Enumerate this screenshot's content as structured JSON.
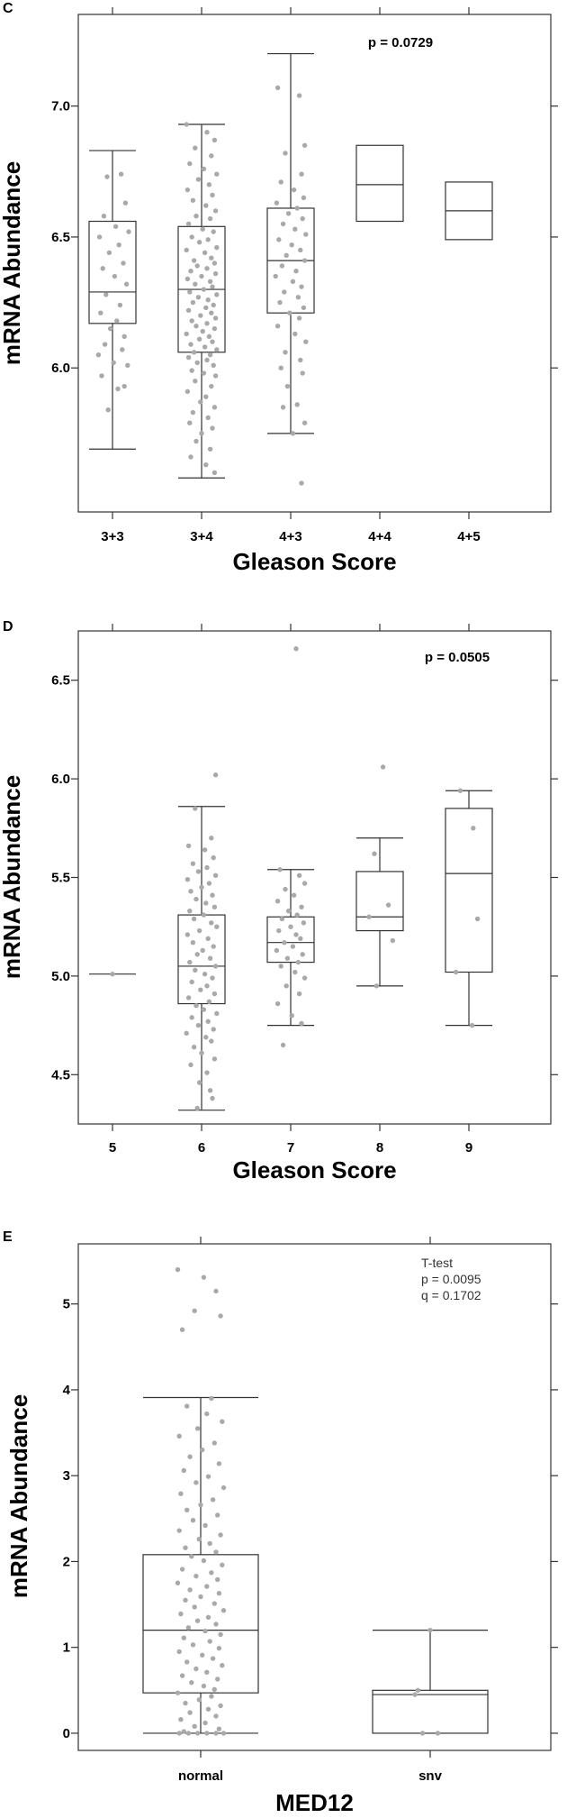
{
  "chart_data": [
    {
      "panel": "C",
      "type": "box",
      "xlabel": "Gleason Score",
      "ylabel": "mRNA Abundance",
      "categories": [
        "3+3",
        "3+4",
        "4+3",
        "4+4",
        "4+5"
      ],
      "ylim": [
        5.45,
        7.35
      ],
      "yticks": [
        6.0,
        6.5,
        7.0
      ],
      "ytick_labels": [
        "6.0",
        "6.5",
        "7.0"
      ],
      "annotation": [
        "p = 0.0729"
      ],
      "annotation_style": "bold",
      "boxes": [
        {
          "whislo": 5.69,
          "q1": 6.17,
          "med": 6.29,
          "q3": 6.56,
          "whishi": 6.83
        },
        {
          "whislo": 5.58,
          "q1": 6.06,
          "med": 6.3,
          "q3": 6.54,
          "whishi": 6.93
        },
        {
          "whislo": 5.75,
          "q1": 6.21,
          "med": 6.41,
          "q3": 6.61,
          "whishi": 7.2
        },
        {
          "whislo": 6.56,
          "q1": 6.56,
          "med": 6.7,
          "q3": 6.85,
          "whishi": 6.85
        },
        {
          "whislo": 6.49,
          "q1": 6.49,
          "med": 6.6,
          "q3": 6.71,
          "whishi": 6.71
        }
      ],
      "points": [
        [
          0.08,
          6.74,
          -0.05,
          6.73,
          0.12,
          6.63,
          -0.08,
          6.58,
          0.03,
          6.54,
          0.15,
          6.52,
          -0.12,
          6.5,
          0.06,
          6.47,
          -0.03,
          6.44,
          0.1,
          6.4,
          -0.09,
          6.38,
          0.02,
          6.35,
          0.13,
          6.32,
          -0.06,
          6.28,
          0.07,
          6.24,
          -0.11,
          6.21,
          0.04,
          6.18,
          -0.02,
          6.15,
          0.11,
          6.12,
          -0.07,
          6.09,
          0.09,
          6.07,
          -0.13,
          6.05,
          0.01,
          6.02,
          0.14,
          6.01,
          -0.1,
          5.97,
          0.05,
          5.92,
          -0.04,
          5.84,
          0.11,
          5.93
        ],
        [
          -0.14,
          6.93,
          0.05,
          6.9,
          0.12,
          6.87,
          -0.06,
          6.84,
          0.09,
          6.81,
          -0.11,
          6.78,
          0.02,
          6.76,
          0.14,
          6.74,
          -0.03,
          6.72,
          0.07,
          6.7,
          -0.13,
          6.68,
          0.1,
          6.66,
          -0.08,
          6.64,
          0.04,
          6.62,
          0.13,
          6.6,
          -0.05,
          6.58,
          0.08,
          6.57,
          -0.12,
          6.55,
          0.01,
          6.53,
          0.11,
          6.52,
          -0.09,
          6.5,
          0.06,
          6.49,
          -0.02,
          6.48,
          0.14,
          6.46,
          -0.14,
          6.45,
          0.03,
          6.44,
          0.09,
          6.42,
          -0.07,
          6.41,
          0.12,
          6.4,
          -0.04,
          6.39,
          0.05,
          6.38,
          -0.1,
          6.37,
          0.13,
          6.36,
          0.0,
          6.35,
          -0.13,
          6.34,
          0.08,
          6.33,
          -0.06,
          6.32,
          0.1,
          6.31,
          0.02,
          6.3,
          -0.11,
          6.29,
          0.14,
          6.28,
          -0.03,
          6.27,
          0.06,
          6.26,
          -0.08,
          6.25,
          0.11,
          6.24,
          0.04,
          6.23,
          -0.12,
          6.22,
          0.09,
          6.21,
          -0.01,
          6.2,
          0.13,
          6.19,
          -0.09,
          6.18,
          0.05,
          6.17,
          -0.05,
          6.16,
          0.12,
          6.15,
          0.01,
          6.14,
          -0.14,
          6.13,
          0.07,
          6.12,
          -0.02,
          6.11,
          0.1,
          6.1,
          -0.1,
          6.09,
          0.03,
          6.08,
          0.14,
          6.07,
          -0.07,
          6.06,
          0.08,
          6.05,
          -0.12,
          6.04,
          0.05,
          6.03,
          -0.04,
          6.02,
          0.11,
          6.01,
          -0.09,
          5.99,
          0.02,
          5.98,
          0.13,
          5.97,
          -0.06,
          5.95,
          0.09,
          5.93,
          -0.13,
          5.91,
          0.04,
          5.89,
          -0.01,
          5.87,
          0.12,
          5.85,
          -0.08,
          5.83,
          0.06,
          5.81,
          -0.11,
          5.79,
          0.1,
          5.77,
          0.0,
          5.75,
          -0.05,
          5.72,
          0.08,
          5.69,
          -0.1,
          5.66,
          0.04,
          5.63,
          0.12,
          5.6
        ],
        [
          -0.12,
          7.07,
          0.08,
          7.04,
          0.13,
          6.85,
          -0.05,
          6.82,
          0.1,
          6.74,
          -0.09,
          6.71,
          0.03,
          6.68,
          0.12,
          6.65,
          -0.13,
          6.63,
          0.06,
          6.61,
          -0.02,
          6.59,
          0.11,
          6.57,
          -0.07,
          6.55,
          0.04,
          6.53,
          0.14,
          6.51,
          -0.11,
          6.49,
          0.01,
          6.47,
          0.09,
          6.45,
          -0.04,
          6.43,
          0.13,
          6.41,
          -0.08,
          6.39,
          0.05,
          6.37,
          -0.14,
          6.35,
          0.02,
          6.33,
          0.1,
          6.31,
          -0.06,
          6.29,
          0.07,
          6.27,
          -0.1,
          6.25,
          0.12,
          6.23,
          -0.01,
          6.21,
          0.08,
          6.19,
          -0.12,
          6.16,
          0.04,
          6.13,
          0.14,
          6.1,
          -0.05,
          6.06,
          0.09,
          6.03,
          -0.09,
          6.0,
          0.11,
          5.98,
          -0.03,
          5.93,
          0.06,
          5.86,
          -0.07,
          5.85,
          0.13,
          5.79,
          0.02,
          5.75,
          0.1,
          5.56
        ]
      ]
    },
    {
      "panel": "D",
      "type": "box",
      "xlabel": "Gleason Score",
      "ylabel": "mRNA Abundance",
      "categories": [
        "5",
        "6",
        "7",
        "8",
        "9"
      ],
      "ylim": [
        4.25,
        6.75
      ],
      "yticks": [
        4.5,
        5.0,
        5.5,
        6.0,
        6.5
      ],
      "ytick_labels": [
        "4.5",
        "5.0",
        "5.5",
        "6.0",
        "6.5"
      ],
      "annotation": [
        "p = 0.0505"
      ],
      "annotation_style": "bold",
      "boxes": [
        {
          "whislo": 5.01,
          "q1": 5.01,
          "med": 5.01,
          "q3": 5.01,
          "whishi": 5.01
        },
        {
          "whislo": 4.32,
          "q1": 4.86,
          "med": 5.05,
          "q3": 5.31,
          "whishi": 5.86
        },
        {
          "whislo": 4.75,
          "q1": 5.07,
          "med": 5.17,
          "q3": 5.3,
          "whishi": 5.54
        },
        {
          "whislo": 4.95,
          "q1": 5.23,
          "med": 5.3,
          "q3": 5.53,
          "whishi": 5.7
        },
        {
          "whislo": 4.75,
          "q1": 5.02,
          "med": 5.52,
          "q3": 5.85,
          "whishi": 5.94
        }
      ],
      "points": [
        [
          0.0,
          5.01
        ],
        [
          0.13,
          6.02,
          -0.06,
          5.85,
          0.09,
          5.7,
          -0.12,
          5.66,
          0.03,
          5.64,
          0.11,
          5.6,
          -0.08,
          5.57,
          0.05,
          5.55,
          -0.03,
          5.53,
          0.13,
          5.51,
          -0.13,
          5.49,
          0.07,
          5.47,
          0.0,
          5.45,
          -0.1,
          5.43,
          0.1,
          5.41,
          -0.05,
          5.39,
          0.04,
          5.37,
          0.12,
          5.35,
          -0.11,
          5.33,
          0.02,
          5.31,
          -0.07,
          5.29,
          0.09,
          5.27,
          0.14,
          5.25,
          -0.02,
          5.23,
          -0.13,
          5.21,
          0.06,
          5.19,
          -0.08,
          5.17,
          0.11,
          5.15,
          0.01,
          5.13,
          -0.04,
          5.11,
          0.08,
          5.09,
          -0.11,
          5.07,
          0.13,
          5.05,
          -0.06,
          5.03,
          0.03,
          5.01,
          0.1,
          4.99,
          -0.09,
          4.97,
          0.05,
          4.95,
          -0.01,
          4.93,
          0.12,
          4.91,
          -0.12,
          4.89,
          0.07,
          4.87,
          -0.05,
          4.85,
          0.02,
          4.83,
          0.14,
          4.81,
          -0.09,
          4.79,
          0.06,
          4.77,
          -0.03,
          4.75,
          0.11,
          4.73,
          -0.14,
          4.71,
          0.04,
          4.69,
          0.09,
          4.67,
          -0.07,
          4.64,
          0.0,
          4.61,
          0.12,
          4.58,
          -0.1,
          4.55,
          0.05,
          4.51,
          -0.02,
          4.46,
          0.08,
          4.42,
          0.1,
          4.38,
          -0.04,
          4.33
        ],
        [
          -0.1,
          5.54,
          0.08,
          5.51,
          0.13,
          5.47,
          -0.05,
          5.44,
          0.03,
          5.41,
          -0.12,
          5.38,
          0.1,
          5.35,
          -0.02,
          5.33,
          0.06,
          5.31,
          -0.08,
          5.29,
          0.12,
          5.27,
          0.0,
          5.25,
          -0.11,
          5.23,
          0.05,
          5.21,
          0.09,
          5.19,
          -0.06,
          5.17,
          0.02,
          5.15,
          -0.13,
          5.13,
          0.11,
          5.11,
          -0.03,
          5.09,
          0.07,
          5.07,
          -0.09,
          5.05,
          0.04,
          5.02,
          0.13,
          4.99,
          -0.04,
          4.95,
          0.08,
          4.91,
          -0.12,
          4.86,
          0.01,
          4.8,
          0.1,
          4.76,
          -0.07,
          4.65,
          0.05,
          6.66
        ],
        [
          -0.05,
          5.62,
          0.08,
          5.36,
          -0.1,
          5.3,
          0.12,
          5.18,
          0.03,
          6.06,
          -0.03,
          4.95
        ],
        [
          0.04,
          5.75,
          -0.08,
          5.94,
          0.08,
          5.29,
          0.03,
          4.75,
          -0.12,
          5.02
        ]
      ]
    },
    {
      "panel": "E",
      "type": "box",
      "xlabel": "MED12",
      "ylabel": "mRNA Abundance",
      "categories": [
        "normal",
        "snv"
      ],
      "ylim": [
        -0.2,
        5.7
      ],
      "yticks": [
        0,
        1,
        2,
        3,
        4,
        5
      ],
      "ytick_labels": [
        "0",
        "1",
        "2",
        "3",
        "4",
        "5"
      ],
      "annotation": [
        "T-test",
        "p = 0.0095",
        "q = 0.1702"
      ],
      "annotation_style": "plain",
      "boxes": [
        {
          "whislo": 0.0,
          "q1": 0.47,
          "med": 1.2,
          "q3": 2.08,
          "whishi": 3.91
        },
        {
          "whislo": 0.0,
          "q1": 0.0,
          "med": 0.45,
          "q3": 0.5,
          "whishi": 1.2
        }
      ],
      "points": [
        [
          -0.15,
          5.4,
          0.02,
          5.31,
          0.1,
          5.15,
          -0.04,
          4.92,
          0.13,
          4.86,
          -0.12,
          4.7,
          0.07,
          3.9,
          -0.09,
          3.81,
          0.04,
          3.72,
          0.14,
          3.63,
          -0.02,
          3.55,
          -0.14,
          3.46,
          0.09,
          3.38,
          0.01,
          3.3,
          -0.07,
          3.22,
          0.12,
          3.14,
          -0.11,
          3.06,
          0.05,
          2.99,
          -0.03,
          2.92,
          0.15,
          2.86,
          -0.13,
          2.79,
          0.08,
          2.72,
          0.0,
          2.66,
          -0.09,
          2.6,
          0.11,
          2.54,
          -0.05,
          2.48,
          0.03,
          2.42,
          -0.14,
          2.36,
          0.13,
          2.31,
          -0.01,
          2.26,
          0.06,
          2.21,
          -0.1,
          2.16,
          0.1,
          2.11,
          -0.06,
          2.06,
          0.02,
          2.01,
          0.14,
          1.96,
          -0.12,
          1.91,
          0.07,
          1.87,
          -0.03,
          1.83,
          0.11,
          1.79,
          -0.15,
          1.75,
          0.04,
          1.71,
          -0.07,
          1.67,
          0.12,
          1.63,
          0.0,
          1.59,
          -0.1,
          1.55,
          0.09,
          1.51,
          -0.04,
          1.47,
          0.15,
          1.43,
          -0.13,
          1.39,
          0.05,
          1.35,
          -0.02,
          1.31,
          0.1,
          1.27,
          -0.08,
          1.23,
          0.03,
          1.19,
          0.13,
          1.15,
          -0.11,
          1.11,
          0.06,
          1.07,
          -0.05,
          1.03,
          0.12,
          0.99,
          -0.14,
          0.95,
          0.01,
          0.91,
          0.08,
          0.87,
          -0.09,
          0.83,
          0.14,
          0.79,
          -0.03,
          0.75,
          0.04,
          0.71,
          -0.12,
          0.67,
          0.11,
          0.63,
          -0.06,
          0.59,
          0.02,
          0.55,
          0.09,
          0.51,
          -0.15,
          0.47,
          0.07,
          0.43,
          -0.01,
          0.39,
          -0.1,
          0.35,
          0.13,
          0.32,
          0.05,
          0.28,
          -0.07,
          0.24,
          0.1,
          0.2,
          -0.13,
          0.16,
          0.03,
          0.12,
          -0.04,
          0.08,
          0.12,
          0.05,
          -0.11,
          0.02,
          -0.14,
          0.0,
          -0.08,
          0.0,
          -0.02,
          0.0,
          0.04,
          0.0,
          0.1,
          0.0,
          0.15,
          0.0
        ],
        [
          -0.08,
          0.5,
          -0.1,
          0.45,
          0.0,
          1.2,
          -0.05,
          0.0,
          0.05,
          0.0
        ]
      ]
    }
  ]
}
